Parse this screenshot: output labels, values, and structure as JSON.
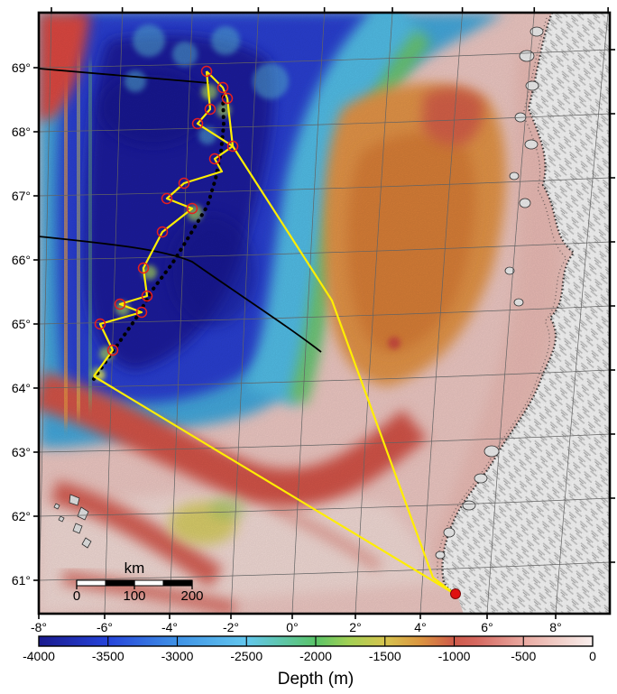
{
  "figure": {
    "kind": "bathymetric shaded-relief map with ship survey track",
    "region": "Norwegian Sea / Mohns-Aegir Ridge to Norway coast"
  },
  "axes": {
    "lat_labels": [
      "69°",
      "68°",
      "67°",
      "66°",
      "65°",
      "64°",
      "63°",
      "62°",
      "61°"
    ],
    "lon_labels": [
      "-8°",
      "-6°",
      "-4°",
      "-2°",
      "0°",
      "2°",
      "4°",
      "6°",
      "8°"
    ]
  },
  "scalebar": {
    "unit_label": "km",
    "tick_labels": [
      "0",
      "100",
      "200"
    ]
  },
  "colorbar": {
    "title": "Depth (m)",
    "tick_labels": [
      "-4000",
      "-3500",
      "-3000",
      "-2500",
      "-2000",
      "-1500",
      "-1000",
      "-500",
      "0"
    ],
    "stops": [
      [
        0.0,
        "#1a1a8e"
      ],
      [
        0.125,
        "#2644da"
      ],
      [
        0.25,
        "#3f92e6"
      ],
      [
        0.375,
        "#63c7ee"
      ],
      [
        0.5,
        "#5ac468"
      ],
      [
        0.56,
        "#a2d054"
      ],
      [
        0.625,
        "#d6c44e"
      ],
      [
        0.69,
        "#db9440"
      ],
      [
        0.75,
        "#ce5a4a"
      ],
      [
        0.79,
        "#d5685f"
      ],
      [
        0.875,
        "#e9a9a1"
      ],
      [
        0.94,
        "#f1cfc9"
      ],
      [
        1.0,
        "#f9efed"
      ]
    ]
  },
  "track": {
    "color": "#ffee00",
    "waypoint_color": "#e81e1e",
    "station_color": "#e01010"
  },
  "colors": {
    "grid": "#636363",
    "frame": "#000000",
    "ridge_axis": "#000000",
    "black_line": "#000000"
  }
}
